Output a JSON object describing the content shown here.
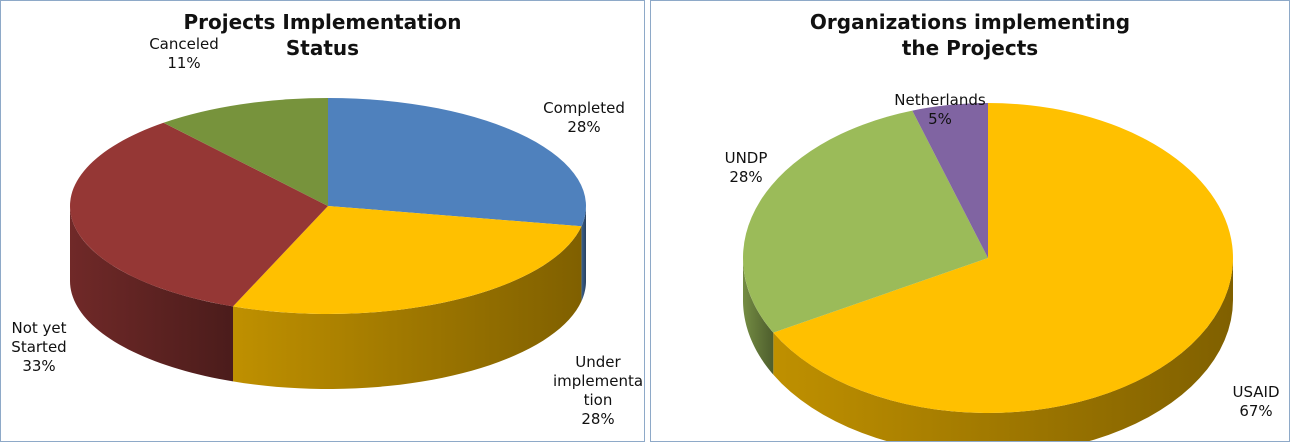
{
  "chart_data": [
    {
      "type": "pie",
      "title": "Projects Implementation Status",
      "categories": [
        "Completed",
        "Under implementation",
        "Not yet Started",
        "Canceled"
      ],
      "values": [
        28,
        28,
        33,
        11
      ],
      "value_labels": [
        "28%",
        "28%",
        "33%",
        "11%"
      ],
      "colors": [
        "#4f81bd",
        "#ffc000",
        "#953735",
        "#77933c"
      ]
    },
    {
      "type": "pie",
      "title": "Organizations implementing the Projects",
      "categories": [
        "USAID",
        "UNDP",
        "Netherlands"
      ],
      "values": [
        67,
        28,
        5
      ],
      "value_labels": [
        "67%",
        "28%",
        "5%"
      ],
      "colors": [
        "#ffc000",
        "#9bbb59",
        "#8064a2"
      ]
    }
  ]
}
